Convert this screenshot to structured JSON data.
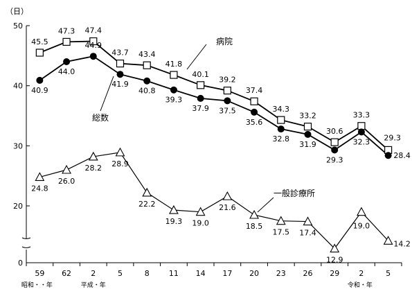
{
  "chart_data": {
    "type": "line",
    "y_unit": "（日）",
    "categories": [
      "59",
      "62",
      "2",
      "5",
      "8",
      "11",
      "14",
      "17",
      "20",
      "23",
      "26",
      "29",
      "2",
      "5"
    ],
    "era_labels": [
      {
        "index": 0,
        "text": "昭和・・年"
      },
      {
        "index": 2,
        "text": "平成・年"
      },
      {
        "index": 12,
        "text": "令和・年"
      }
    ],
    "yticks": [
      0,
      20,
      30,
      40,
      50
    ],
    "ylim_upper": [
      10,
      50
    ],
    "axis_break": true,
    "series": [
      {
        "name": "病院",
        "marker": "open-square",
        "values": [
          45.5,
          47.3,
          47.4,
          43.7,
          43.4,
          41.8,
          40.1,
          39.2,
          37.4,
          34.3,
          33.2,
          30.6,
          33.3,
          29.3
        ]
      },
      {
        "name": "総数",
        "marker": "filled-circle",
        "values": [
          40.9,
          44.0,
          44.9,
          41.9,
          40.8,
          39.3,
          37.9,
          37.5,
          35.6,
          32.8,
          31.9,
          29.3,
          32.3,
          28.4
        ]
      },
      {
        "name": "一般診療所",
        "marker": "open-triangle",
        "values": [
          24.8,
          26.0,
          28.2,
          28.9,
          22.2,
          19.3,
          19.0,
          21.6,
          18.5,
          17.5,
          17.4,
          12.9,
          19.0,
          14.2
        ]
      }
    ],
    "grid": false,
    "legend": "inline labels"
  }
}
